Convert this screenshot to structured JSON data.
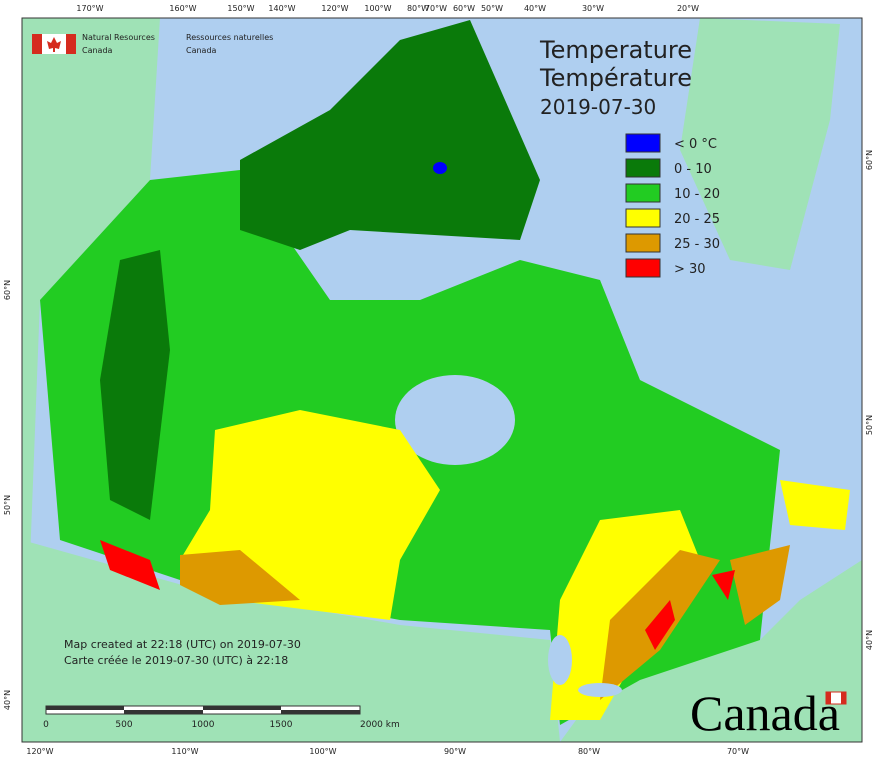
{
  "top_longitudes": [
    "170°W",
    "160°W",
    "150°W",
    "140°W",
    "120°W",
    "100°W",
    "80°W",
    "70°W",
    "60°W",
    "50°W",
    "40°W",
    "30°W",
    "20°W"
  ],
  "bottom_longitudes": [
    "120°W",
    "110°W",
    "100°W",
    "90°W",
    "80°W",
    "70°W"
  ],
  "left_latitudes": [
    "60°N",
    "50°N",
    "40°N"
  ],
  "right_latitudes": [
    "60°N",
    "50°N",
    "40°N"
  ],
  "logo": {
    "en_line1": "Natural Resources",
    "en_line2": "Canada",
    "fr_line1": "Ressources naturelles",
    "fr_line2": "Canada"
  },
  "title": {
    "line1": "Temperature",
    "line2": "Température",
    "date": "2019-07-30"
  },
  "legend": [
    {
      "label": "< 0 °C",
      "color": "#0000ff"
    },
    {
      "label": "0 - 10",
      "color": "#0a7a0a"
    },
    {
      "label": "10 - 20",
      "color": "#22cc22"
    },
    {
      "label": "20 - 25",
      "color": "#ffff00"
    },
    {
      "label": "25 - 30",
      "color": "#dd9900"
    },
    {
      "label": "> 30",
      "color": "#ff0000"
    }
  ],
  "footer": {
    "line1": "Map created at 22:18 (UTC) on 2019-07-30",
    "line2": "Carte créée le 2019-07-30 (UTC) à 22:18"
  },
  "scale_labels": [
    "0",
    "500",
    "1000",
    "1500",
    "2000 km"
  ],
  "wordmark": "Canada"
}
